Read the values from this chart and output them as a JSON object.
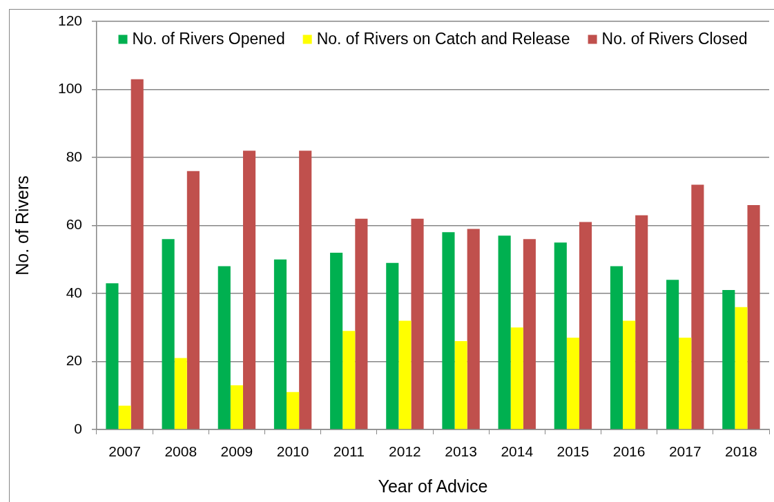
{
  "chart_data": {
    "type": "bar",
    "xlabel": "Year of Advice",
    "ylabel": "No. of Rivers",
    "categories": [
      "2007",
      "2008",
      "2009",
      "2010",
      "2011",
      "2012",
      "2013",
      "2014",
      "2015",
      "2016",
      "2017",
      "2018"
    ],
    "series": [
      {
        "name": "No. of Rivers Opened",
        "color": "#00b050",
        "values": [
          43,
          56,
          48,
          50,
          52,
          49,
          58,
          57,
          55,
          48,
          44,
          41
        ]
      },
      {
        "name": "No. of Rivers on Catch and Release",
        "color": "#ffff00",
        "values": [
          7,
          21,
          13,
          11,
          29,
          32,
          26,
          30,
          27,
          32,
          27,
          36
        ]
      },
      {
        "name": "No. of Rivers Closed",
        "color": "#c0504d",
        "values": [
          103,
          76,
          82,
          82,
          62,
          62,
          59,
          56,
          61,
          63,
          72,
          66
        ]
      }
    ],
    "ylim": [
      0,
      120
    ],
    "yticks": [
      0,
      20,
      40,
      60,
      80,
      100,
      120
    ],
    "grid": "y",
    "legend": "top"
  }
}
